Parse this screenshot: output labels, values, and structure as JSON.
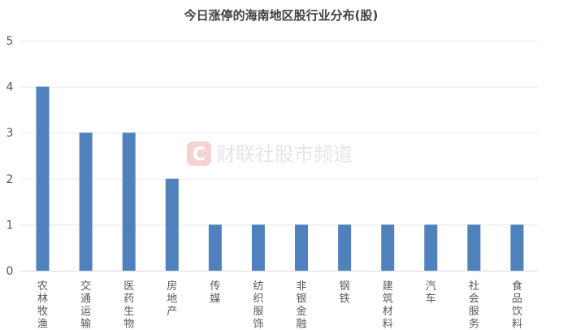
{
  "chart_data": {
    "type": "bar",
    "title": "今日涨停的海南地区股行业分布(股)",
    "categories": [
      "农林牧渔",
      "交通运输",
      "医药生物",
      "房地产",
      "传媒",
      "纺织服饰",
      "非银金融",
      "钢铁",
      "建筑材料",
      "汽车",
      "社会服务",
      "食品饮料"
    ],
    "values": [
      4,
      3,
      3,
      2,
      1,
      1,
      1,
      1,
      1,
      1,
      1,
      1
    ],
    "xlabel": "",
    "ylabel": "",
    "ylim": [
      0,
      5
    ],
    "yticks": [
      0,
      1,
      2,
      3,
      4,
      5
    ],
    "grid": true,
    "legend": "none",
    "bar_color": "#4f81bd",
    "watermark": "财联社股市频道"
  }
}
